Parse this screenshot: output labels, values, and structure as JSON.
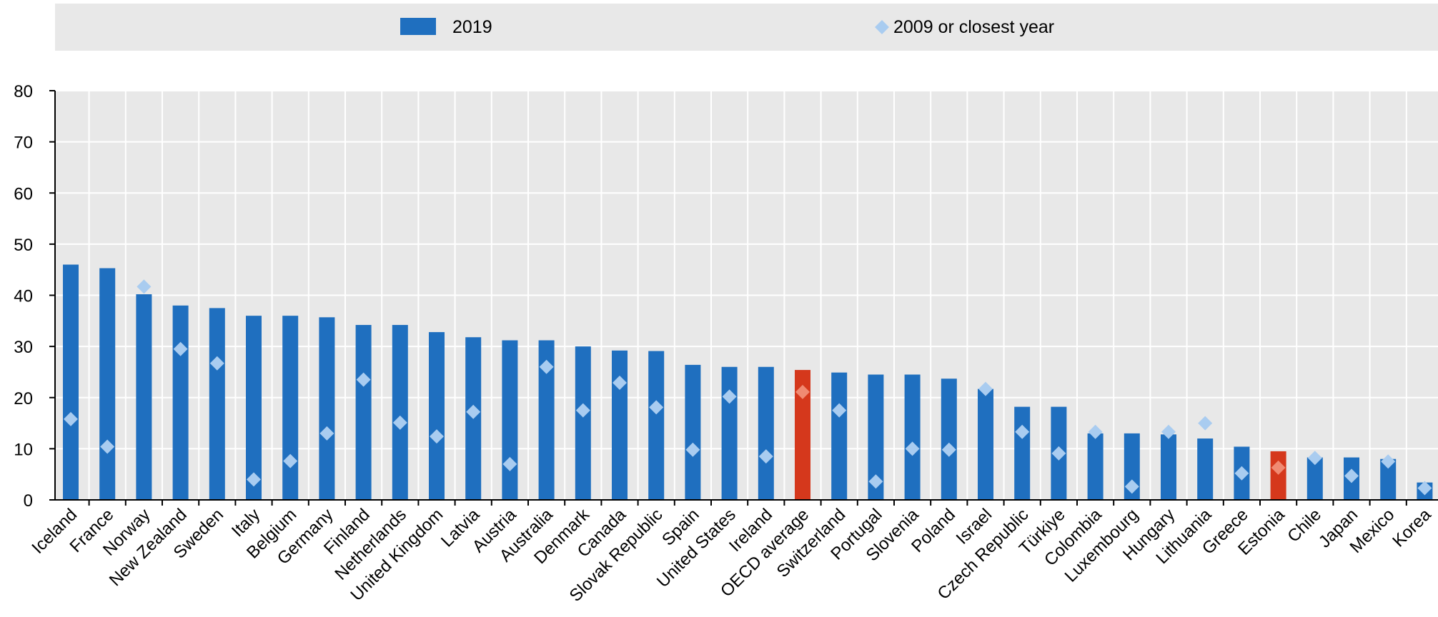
{
  "chart_data": {
    "type": "bar",
    "title": "",
    "xlabel": "",
    "ylabel": "",
    "ylim": [
      0,
      80
    ],
    "yticks": [
      0,
      10,
      20,
      30,
      40,
      50,
      60,
      70,
      80
    ],
    "grid": true,
    "legend_position": "top",
    "categories": [
      "Iceland",
      "France",
      "Norway",
      "New Zealand",
      "Sweden",
      "Italy",
      "Belgium",
      "Germany",
      "Finland",
      "Netherlands",
      "United Kingdom",
      "Latvia",
      "Austria",
      "Australia",
      "Denmark",
      "Canada",
      "Slovak Republic",
      "Spain",
      "United States",
      "Ireland",
      "OECD average",
      "Switzerland",
      "Portugal",
      "Slovenia",
      "Poland",
      "Israel",
      "Czech Republic",
      "Türkiye",
      "Colombia",
      "Luxembourg",
      "Hungary",
      "Lithuania",
      "Greece",
      "Estonia",
      "Chile",
      "Japan",
      "Mexico",
      "Korea"
    ],
    "highlighted": [
      "OECD average",
      "Estonia"
    ],
    "series": [
      {
        "name": "2019",
        "kind": "bar",
        "color": "#1F6FBF",
        "values": [
          46,
          45.3,
          40.2,
          38,
          37.5,
          36,
          36,
          35.7,
          34.2,
          34.2,
          32.8,
          31.8,
          31.2,
          31.2,
          30,
          29.2,
          29.1,
          26.4,
          26,
          26,
          25.4,
          24.9,
          24.5,
          24.5,
          23.7,
          21.7,
          18.2,
          18.2,
          13,
          13,
          12.8,
          12,
          10.4,
          9.5,
          8.3,
          8.3,
          8,
          3.4
        ]
      },
      {
        "name": "2009 or closest year",
        "kind": "marker",
        "color": "#A9CCF0",
        "values": [
          15.8,
          10.4,
          41.7,
          29.5,
          26.7,
          4,
          7.6,
          13,
          23.5,
          15.1,
          12.4,
          17.2,
          7,
          26,
          17.5,
          22.9,
          18.1,
          9.8,
          20.2,
          8.5,
          21.1,
          17.5,
          3.6,
          10,
          9.8,
          21.7,
          13.3,
          9.1,
          13.3,
          2.6,
          13.3,
          15,
          5.2,
          6.3,
          8.2,
          4.7,
          7.5,
          2.3
        ]
      }
    ],
    "highlight_color": "#D5381C",
    "highlight_marker_color": "#F08A72"
  },
  "legend": {
    "items": [
      {
        "label": "2019",
        "symbol": "bar",
        "color": "#1F6FBF"
      },
      {
        "label": "2009 or closest year",
        "symbol": "diamond",
        "color": "#A9CCF0"
      }
    ]
  },
  "colors": {
    "plot_background": "#E8E8E8",
    "legend_background": "#E8E8E8",
    "gridline": "#FFFFFF",
    "axis": "#000000"
  }
}
